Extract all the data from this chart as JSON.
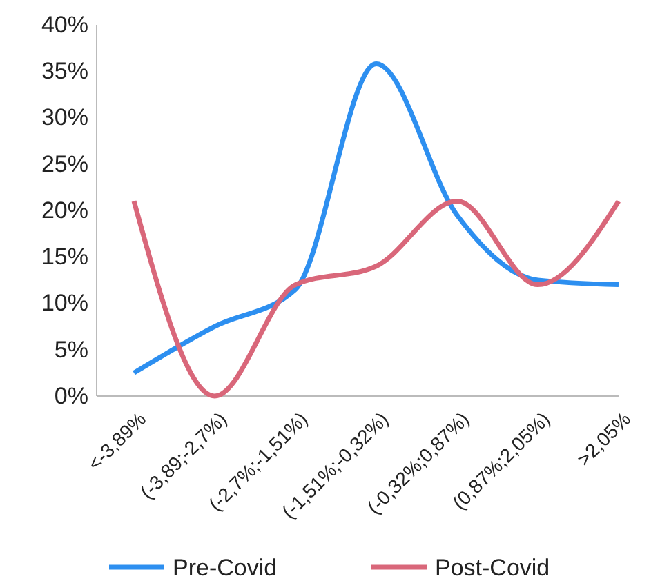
{
  "chart_data": {
    "type": "line",
    "categories": [
      "<-3,89%",
      "(-3,89;-2,7%)",
      "(-2,7%;-1,51%)",
      "(-1,51%;-0,32%)",
      "(-0,32%;0,87%)",
      "(0,87%;2,05%)",
      ">2,05%"
    ],
    "series": [
      {
        "name": "Pre-Covid",
        "color": "#2d8ff0",
        "values": [
          2.5,
          7.5,
          11.5,
          35.8,
          19.5,
          12.5,
          12
        ]
      },
      {
        "name": "Post-Covid",
        "color": "#d9677a",
        "values": [
          21,
          0,
          12,
          14,
          21,
          12,
          21
        ]
      }
    ],
    "ylim": [
      0,
      40
    ],
    "yticks": [
      {
        "value": 0,
        "label": "0%"
      },
      {
        "value": 5,
        "label": "5%"
      },
      {
        "value": 10,
        "label": "10%"
      },
      {
        "value": 15,
        "label": "15%"
      },
      {
        "value": 20,
        "label": "20%"
      },
      {
        "value": 25,
        "label": "25%"
      },
      {
        "value": 30,
        "label": "30%"
      },
      {
        "value": 35,
        "label": "35%"
      },
      {
        "value": 40,
        "label": "40%"
      }
    ],
    "grid": false,
    "legend": "bottom",
    "marker": "none",
    "line_style": "solid"
  }
}
